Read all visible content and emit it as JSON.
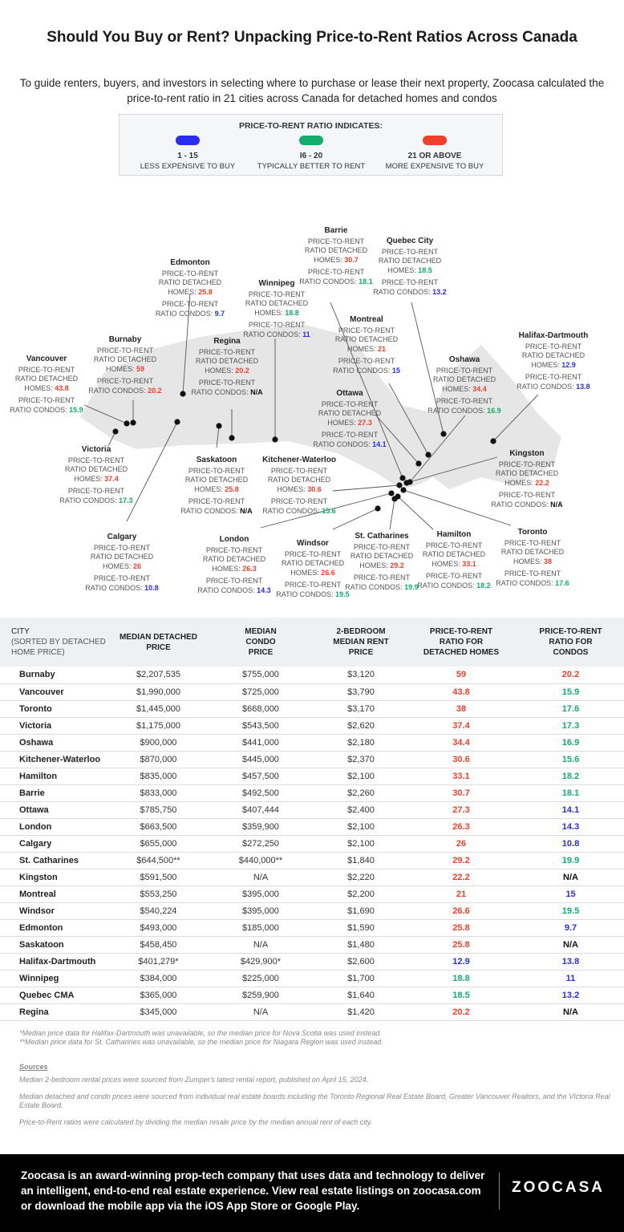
{
  "title": "Should You Buy or Rent? Unpacking Price-to-Rent Ratios Across Canada",
  "subtitle": "To guide renters, buyers, and investors in selecting where to purchase or lease their next property, Zoocasa calculated the price-to-rent ratio in 21 cities across Canada for detached homes and condos",
  "legend": {
    "title": "PRICE-TO-RENT RATIO INDICATES:",
    "items": [
      {
        "range": "1 - 15",
        "meaning": "LESS EXPENSIVE TO BUY",
        "color": "#2a2cf0"
      },
      {
        "range": "I6 - 20",
        "meaning": "TYPICALLY BETTER TO RENT",
        "color": "#13ad6d"
      },
      {
        "range": "21 OR ABOVE",
        "meaning": "MORE EXPENSIVE TO BUY",
        "color": "#f0402b"
      }
    ]
  },
  "map": {
    "detached_label": "Price-to-rent ratio detached homes:",
    "condo_label": "Price-to-rent ratio condos:",
    "cities": [
      {
        "name": "Edmonton",
        "detached": "25.8",
        "condo": "9.7"
      },
      {
        "name": "Winnipeg",
        "detached": "18.8",
        "condo": "11"
      },
      {
        "name": "Barrie",
        "detached": "30.7",
        "condo": "18.1"
      },
      {
        "name": "Quebec City",
        "detached": "18.5",
        "condo": "13.2"
      },
      {
        "name": "Montreal",
        "detached": "21",
        "condo": "15"
      },
      {
        "name": "Halifax-Dartmouth",
        "detached": "12.9",
        "condo": "13.8"
      },
      {
        "name": "Burnaby",
        "detached": "59",
        "condo": "20.2"
      },
      {
        "name": "Regina",
        "detached": "20.2",
        "condo": "N/A"
      },
      {
        "name": "Vancouver",
        "detached": "43.8",
        "condo": "15.9"
      },
      {
        "name": "Oshawa",
        "detached": "34.4",
        "condo": "16.9"
      },
      {
        "name": "Ottawa",
        "detached": "27.3",
        "condo": "14.1"
      },
      {
        "name": "Victoria",
        "detached": "37.4",
        "condo": "17.3"
      },
      {
        "name": "Saskatoon",
        "detached": "25.8",
        "condo": "N/A"
      },
      {
        "name": "Kitchener-Waterloo",
        "detached": "30.6",
        "condo": "15.6"
      },
      {
        "name": "Kingston",
        "detached": "22.2",
        "condo": "N/A"
      },
      {
        "name": "Calgary",
        "detached": "26",
        "condo": "10.8"
      },
      {
        "name": "London",
        "detached": "26.3",
        "condo": "14.3"
      },
      {
        "name": "Windsor",
        "detached": "26.6",
        "condo": "19.5"
      },
      {
        "name": "St. Catharines",
        "detached": "29.2",
        "condo": "19.9"
      },
      {
        "name": "Hamilton",
        "detached": "33.1",
        "condo": "18.2"
      },
      {
        "name": "Toronto",
        "detached": "38",
        "condo": "17.6"
      }
    ]
  },
  "table": {
    "headers": {
      "city": "City",
      "city_note": "(Sorted by detached home price)",
      "detached": "Median Detached Price",
      "condo": "Median Condo Price",
      "rent": "2-Bedroom Median Rent Price",
      "ratio_detached": "Price-to-Rent Ratio for Detached Homes",
      "ratio_condo": "Price-to-Rent Ratio for Condos"
    },
    "rows": [
      [
        "Burnaby",
        "$2,207,535",
        "$755,000",
        "$3,120",
        "59",
        "20.2"
      ],
      [
        "Vancouver",
        "$1,990,000",
        "$725,000",
        "$3,790",
        "43.8",
        "15.9"
      ],
      [
        "Toronto",
        "$1,445,000",
        "$668,000",
        "$3,170",
        "38",
        "17.6"
      ],
      [
        "Victoria",
        "$1,175,000",
        "$543,500",
        "$2,620",
        "37.4",
        "17.3"
      ],
      [
        "Oshawa",
        "$900,000",
        "$441,000",
        "$2,180",
        "34.4",
        "16.9"
      ],
      [
        "Kitchener-Waterloo",
        "$870,000",
        "$445,000",
        "$2,370",
        "30.6",
        "15.6"
      ],
      [
        "Hamilton",
        "$835,000",
        "$457,500",
        "$2,100",
        "33.1",
        "18.2"
      ],
      [
        "Barrie",
        "$833,000",
        "$492,500",
        "$2,260",
        "30.7",
        "18.1"
      ],
      [
        "Ottawa",
        "$785,750",
        "$407,444",
        "$2,400",
        "27.3",
        "14.1"
      ],
      [
        "London",
        "$663,500",
        "$359,900",
        "$2,100",
        "26.3",
        "14.3"
      ],
      [
        "Calgary",
        "$655,000",
        "$272,250",
        "$2,100",
        "26",
        "10.8"
      ],
      [
        "St. Catharines",
        "$644,500**",
        "$440,000**",
        "$1,840",
        "29.2",
        "19.9"
      ],
      [
        "Kingston",
        "$591,500",
        "N/A",
        "$2,220",
        "22.2",
        "N/A"
      ],
      [
        "Montreal",
        "$553,250",
        "$395,000",
        "$2,200",
        "21",
        "15"
      ],
      [
        "Windsor",
        "$540,224",
        "$395,000",
        "$1,690",
        "26.6",
        "19.5"
      ],
      [
        "Edmonton",
        "$493,000",
        "$185,000",
        "$1,590",
        "25.8",
        "9.7"
      ],
      [
        "Saskatoon",
        "$458,450",
        "N/A",
        "$1,480",
        "25.8",
        "N/A"
      ],
      [
        "Halifax-Dartmouth",
        "$401,279*",
        "$429,900*",
        "$2,600",
        "12.9",
        "13.8"
      ],
      [
        "Winnipeg",
        "$384,000",
        "$225,000",
        "$1,700",
        "18.8",
        "11"
      ],
      [
        "Quebec CMA",
        "$365,000",
        "$259,900",
        "$1,640",
        "18.5",
        "13.2"
      ],
      [
        "Regina",
        "$345,000",
        "N/A",
        "$1,420",
        "20.2",
        "N/A"
      ]
    ]
  },
  "notes": [
    "*Median price data for Halifax-Dartmouth was unavailable, so the median price for Nova Scotia was used instead.",
    "**Median price data for St. Catharines was unavailable, so the median price for Niagara Region was used instead."
  ],
  "sources": {
    "heading": "Sources",
    "items": [
      "Median 2-bedroom rental prices were sourced from Zumper's latest rental report, published on April 15, 2024.",
      "Median detached and condo prices were sourced from individual real estate boards including the Toronto Regional Real Estate Board, Greater Vancouver Realtors, and the VIctoria Real Estate Board.",
      "Price-to-Rent ratios were calculated by dividing the median resale price by the median annual rent of each city."
    ]
  },
  "footer": {
    "text": "Zoocasa is an award-winning prop-tech company that uses data and technology to deliver an intelligent, end-to-end real estate experience. View real estate listings on zoocasa.com or download the mobile app via the iOS App Store or Google Play.",
    "logo": "ZOOCASA"
  }
}
